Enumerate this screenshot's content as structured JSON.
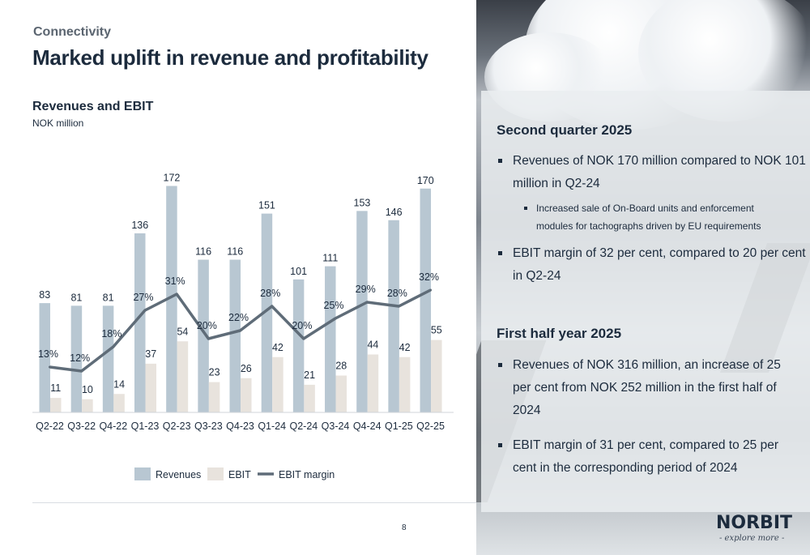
{
  "header": {
    "kicker": "Connectivity",
    "title": "Marked uplift in revenue and profitability"
  },
  "chart_section": {
    "title": "Revenues and EBIT",
    "subtitle": "NOK million"
  },
  "chart_data": {
    "type": "bar",
    "categories": [
      "Q2-22",
      "Q3-22",
      "Q4-22",
      "Q1-23",
      "Q2-23",
      "Q3-23",
      "Q4-23",
      "Q1-24",
      "Q2-24",
      "Q3-24",
      "Q4-24",
      "Q1-25",
      "Q2-25"
    ],
    "series": [
      {
        "name": "Revenues",
        "type": "bar",
        "color": "#b8c7d2",
        "values": [
          83,
          81,
          81,
          136,
          172,
          116,
          116,
          151,
          101,
          111,
          153,
          146,
          170
        ]
      },
      {
        "name": "EBIT",
        "type": "bar",
        "color": "#e8e3dd",
        "values": [
          11,
          10,
          14,
          37,
          54,
          23,
          26,
          42,
          21,
          28,
          44,
          42,
          55
        ]
      },
      {
        "name": "EBIT margin",
        "type": "line",
        "color": "#5f6c78",
        "values": [
          13,
          12,
          18,
          27,
          31,
          20,
          22,
          28,
          20,
          25,
          29,
          28,
          32
        ],
        "labels": [
          "13%",
          "12%",
          "18%",
          "27%",
          "31%",
          "20%",
          "22%",
          "28%",
          "20%",
          "25%",
          "29%",
          "28%",
          "32%"
        ]
      }
    ],
    "legend": {
      "position": "bottom",
      "entries": [
        "Revenues",
        "EBIT",
        "EBIT margin"
      ]
    },
    "grid": false
  },
  "panel": {
    "sections": [
      {
        "title": "Second quarter 2025",
        "bullets": [
          {
            "lines": [
              "Revenues of NOK 170 million compared to NOK 101",
              "million in Q2-24"
            ]
          },
          {
            "sub": true,
            "lines": [
              "Increased sale of On-Board units and enforcement",
              "modules for tachographs driven by EU requirements"
            ]
          },
          {
            "lines": [
              "EBIT margin of 32 per cent, compared to 20 per cent",
              "in Q2-24"
            ]
          }
        ]
      },
      {
        "title": "First half year 2025",
        "bullets": [
          {
            "lines": [
              "Revenues of NOK 316 million, an increase of 25",
              "per cent from NOK 252 million in the first half of",
              "2024"
            ]
          },
          {
            "lines": [
              "EBIT margin of 31 per cent, compared to 25 per",
              "cent in the corresponding period of 2024"
            ]
          }
        ]
      }
    ]
  },
  "footer": {
    "page_number": "8",
    "logo": "NORBIT",
    "tagline": "- explore more -"
  },
  "colors": {
    "text": "#1c2b3d",
    "revenue_bar": "#b8c7d2",
    "ebit_bar": "#e8e3dd",
    "margin_line": "#5f6c78"
  }
}
